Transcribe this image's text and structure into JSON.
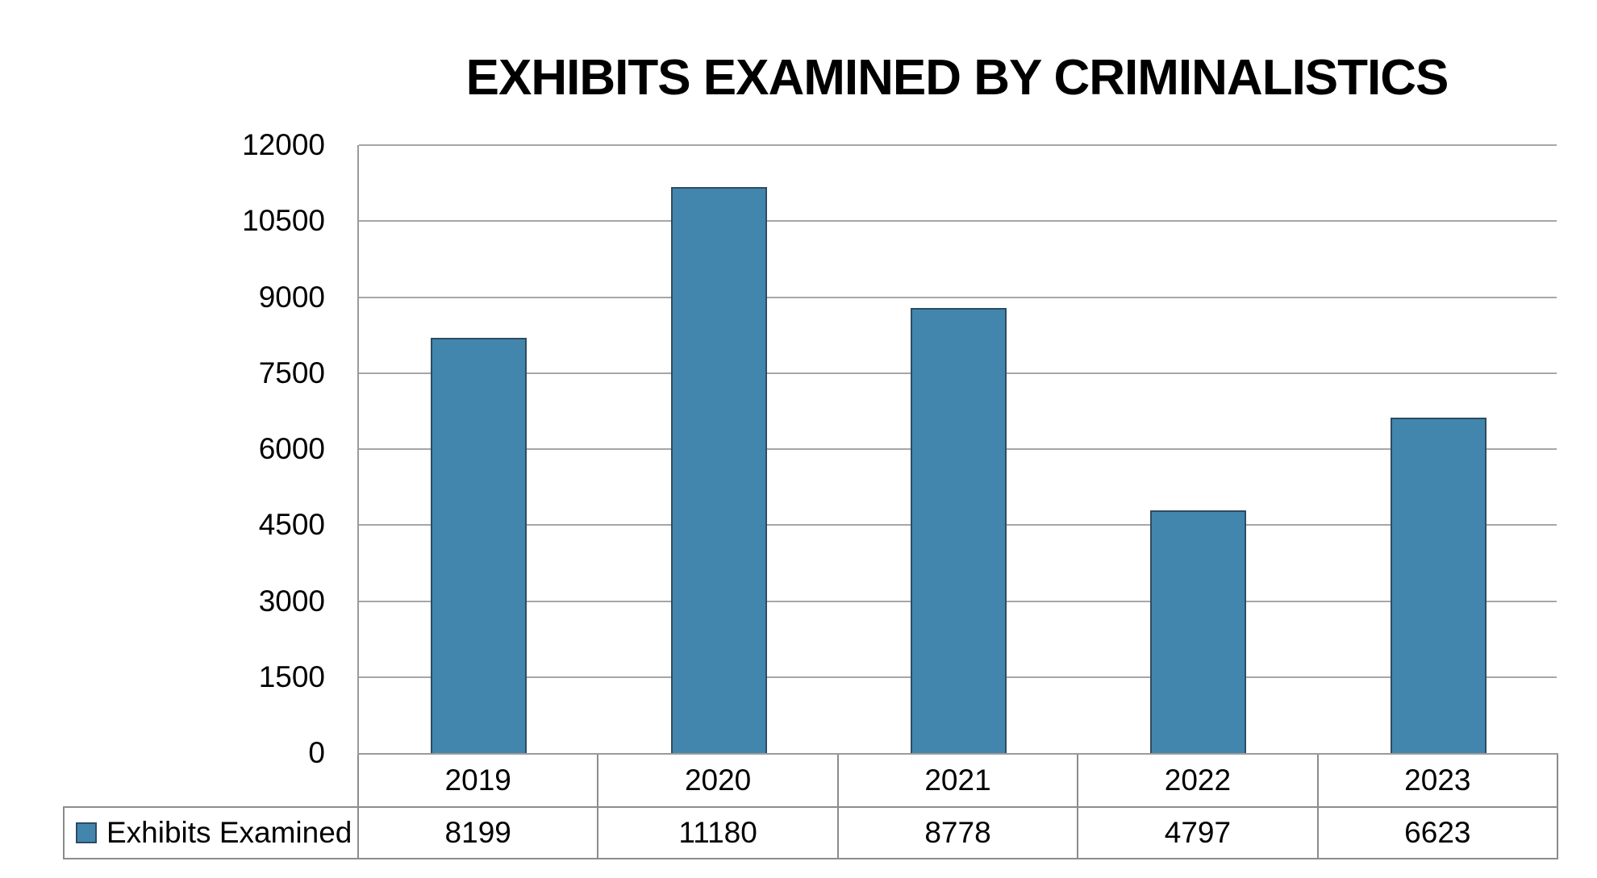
{
  "page": {
    "background_color": "#ffffff"
  },
  "chart_data": {
    "type": "bar",
    "title": "EXHIBITS EXAMINED BY CRIMINALISTICS",
    "categories": [
      "2019",
      "2020",
      "2021",
      "2022",
      "2023"
    ],
    "series": [
      {
        "name": "Exhibits Examined",
        "values": [
          8199,
          11180,
          8778,
          4797,
          6623
        ]
      }
    ],
    "xlabel": "",
    "ylabel": "",
    "ylim": [
      0,
      12000
    ],
    "ytick_step": 1500,
    "yticks": [
      0,
      1500,
      3000,
      4500,
      6000,
      7500,
      9000,
      10500,
      12000
    ],
    "grid": "horizontal-on",
    "legend_position": "bottom-table-left",
    "data_table_shown": true,
    "colors": {
      "bar_fill": "#4286AE",
      "bar_border": "#2F4B60",
      "grid_line": "#A6A6A6",
      "axis_line": "#9B9B9B",
      "table_border": "#8C8C8C",
      "title_text": "#000000",
      "label_text": "#000000"
    }
  }
}
